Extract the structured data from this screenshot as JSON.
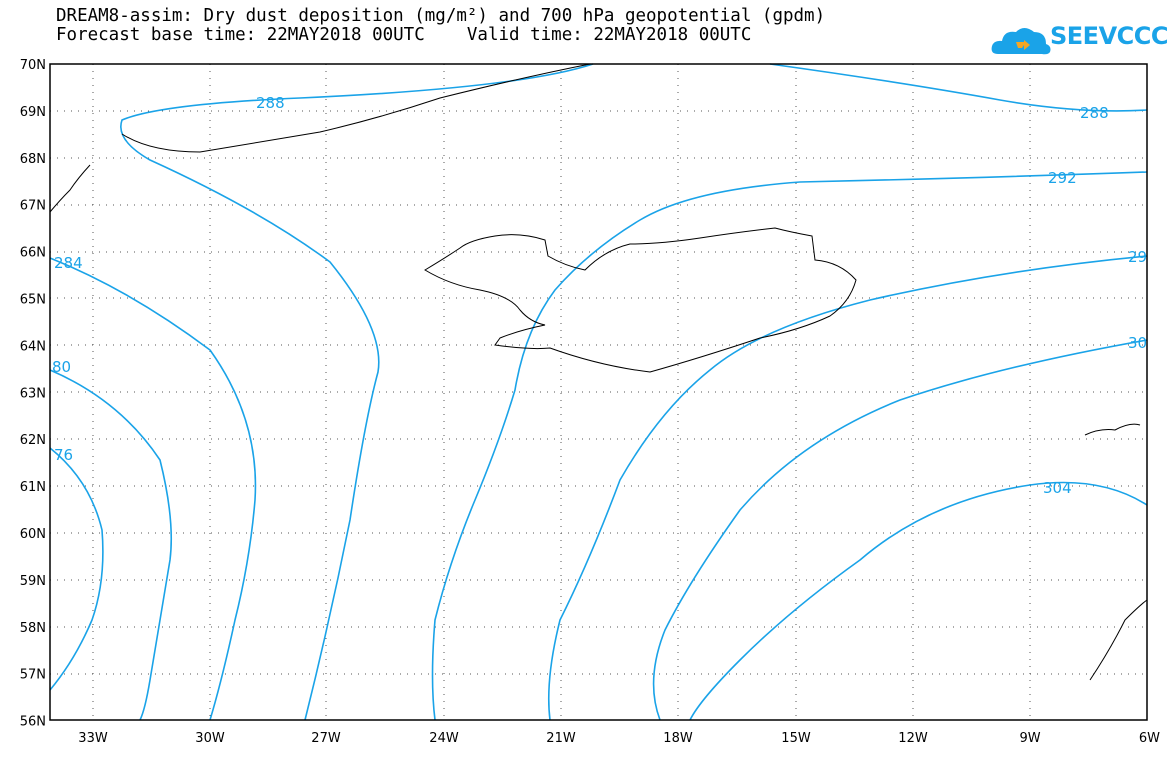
{
  "title_line1": "DREAM8-assim: Dry dust deposition (mg/m²) and 700 hPa geopotential (gpdm)",
  "title_line2": "Forecast base time: 22MAY2018 00UTC    Valid time: 22MAY2018 00UTC",
  "logo_text": "SEEVCCC",
  "lat_labels": [
    "70N",
    "69N",
    "68N",
    "67N",
    "66N",
    "65N",
    "64N",
    "63N",
    "62N",
    "61N",
    "60N",
    "59N",
    "58N",
    "57N",
    "56N"
  ],
  "lon_labels": [
    "33W",
    "30W",
    "27W",
    "24W",
    "21W",
    "18W",
    "15W",
    "12W",
    "9W",
    "6W"
  ],
  "contour_labels": [
    "288",
    "288",
    "292",
    "29",
    "30",
    "304",
    "284",
    "80",
    "76"
  ],
  "colors": {
    "contour": "#1aa3e8",
    "coast": "#000000",
    "frame": "#000000"
  }
}
